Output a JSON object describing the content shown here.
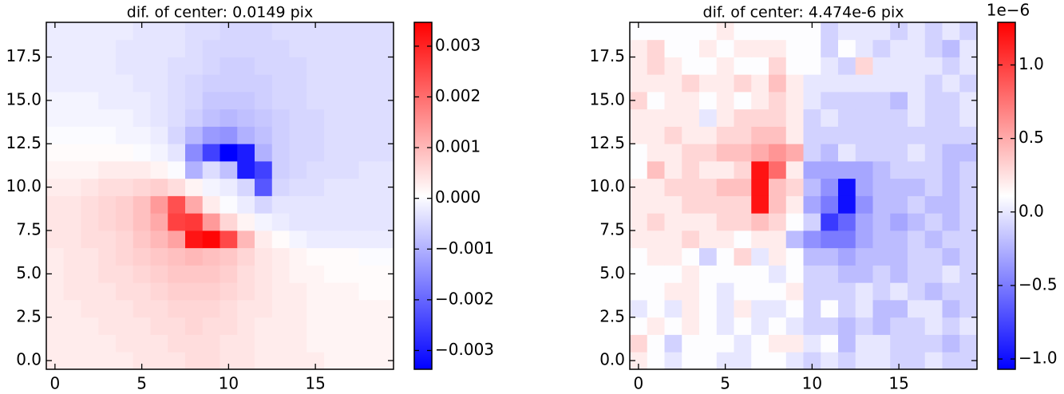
{
  "chart_data": [
    {
      "type": "heatmap",
      "title": "dif. of center: 0.0149 pix",
      "colormap": "bwr",
      "x": [
        0,
        1,
        2,
        3,
        4,
        5,
        6,
        7,
        8,
        9,
        10,
        11,
        12,
        13,
        14,
        15,
        16,
        17,
        18,
        19
      ],
      "y": [
        0,
        1,
        2,
        3,
        4,
        5,
        6,
        7,
        8,
        9,
        10,
        11,
        12,
        13,
        14,
        15,
        16,
        17,
        18,
        19
      ],
      "xlim": [
        -0.5,
        19.5
      ],
      "ylim": [
        -0.5,
        19.5
      ],
      "xticks": [
        0,
        5,
        10,
        15
      ],
      "yticks": [
        {
          "value": 0,
          "label": "0.0"
        },
        2.5,
        {
          "value": 5,
          "label": "5.0"
        },
        7.5,
        {
          "value": 10,
          "label": "10.0"
        },
        12.5,
        {
          "value": 15,
          "label": "15.0"
        },
        17.5
      ],
      "clim": [
        -0.00337,
        0.00347
      ],
      "cticks": [
        {
          "value": -0.003,
          "label": "−0.003"
        },
        {
          "value": -0.002,
          "label": "−0.002"
        },
        {
          "value": -0.001,
          "label": "−0.001"
        },
        {
          "value": 0,
          "label": "0.000"
        },
        0.001,
        0.002,
        0.003
      ],
      "values": [
        [
          0.0003,
          0.0003,
          0.0003,
          0.0003,
          0.0003,
          0.0004,
          0.0004,
          0.0004,
          0.0005,
          0.0005,
          0.0004,
          0.0004,
          0.0003,
          0.0003,
          0.0003,
          0.0003,
          0.0002,
          0.0002,
          0.0002,
          0.0002
        ],
        [
          0.0003,
          0.0003,
          0.0003,
          0.0003,
          0.0004,
          0.0004,
          0.0004,
          0.0005,
          0.0005,
          0.0005,
          0.0004,
          0.0004,
          0.0003,
          0.0003,
          0.0003,
          0.0002,
          0.0002,
          0.0002,
          0.0002,
          0.0002
        ],
        [
          0.0003,
          0.0003,
          0.0003,
          0.0004,
          0.0004,
          0.0004,
          0.0005,
          0.0005,
          0.0006,
          0.0005,
          0.0005,
          0.0004,
          0.0003,
          0.0003,
          0.0003,
          0.0002,
          0.0002,
          0.0002,
          0.0002,
          0.0002
        ],
        [
          0.0003,
          0.0003,
          0.0004,
          0.0004,
          0.0004,
          0.0005,
          0.0005,
          0.0006,
          0.0006,
          0.0006,
          0.0005,
          0.0004,
          0.0004,
          0.0003,
          0.0003,
          0.0002,
          0.0002,
          0.0002,
          0.0002,
          0.0002
        ],
        [
          0.0003,
          0.0004,
          0.0004,
          0.0004,
          0.0005,
          0.0005,
          0.0006,
          0.0007,
          0.0007,
          0.0007,
          0.0006,
          0.0005,
          0.0004,
          0.0003,
          0.0003,
          0.0002,
          0.0002,
          0.0002,
          0.0001,
          0.0001
        ],
        [
          0.0003,
          0.0004,
          0.0004,
          0.0005,
          0.0005,
          0.0006,
          0.0007,
          0.0008,
          0.0008,
          0.0008,
          0.0007,
          0.0005,
          0.0004,
          0.0003,
          0.0002,
          0.0002,
          0.0001,
          0.0001,
          0.0001,
          0.0001
        ],
        [
          0.0003,
          0.0004,
          0.0004,
          0.0005,
          0.0006,
          0.0007,
          0.0008,
          0.0009,
          0.001,
          0.0009,
          0.0008,
          0.0006,
          0.0004,
          0.0003,
          0.0002,
          0.0001,
          0.0001,
          0.0001,
          0,
          0
        ],
        [
          0.0004,
          0.0004,
          0.0005,
          0.0005,
          0.0006,
          0.0008,
          0.001,
          0.0013,
          0.0032,
          0.0034,
          0.0025,
          0.001,
          0.0003,
          0.0001,
          -0.0001,
          -0.0002,
          -0.0002,
          -0.0002,
          -0.0002,
          -0.0002
        ],
        [
          0.0004,
          0.0004,
          0.0005,
          0.0006,
          0.0007,
          0.0009,
          0.0012,
          0.0026,
          0.0027,
          0.0014,
          0.0006,
          0.0002,
          -0.0001,
          -0.0002,
          -0.0003,
          -0.0003,
          -0.0003,
          -0.0003,
          -0.0003,
          -0.0003
        ],
        [
          0.0004,
          0.0004,
          0.0005,
          0.0006,
          0.0007,
          0.0009,
          0.0014,
          0.0024,
          0.0012,
          0.0003,
          0,
          -0.0002,
          -0.0005,
          -0.0003,
          -0.0003,
          -0.0003,
          -0.0003,
          -0.0003,
          -0.0003,
          -0.0003
        ],
        [
          0.0003,
          0.0003,
          0.0004,
          0.0005,
          0.0005,
          0.0006,
          0.0007,
          0.0005,
          0.0002,
          -0.0001,
          -0.0002,
          -0.0005,
          -0.0022,
          -0.0005,
          -0.0004,
          -0.0004,
          -0.0003,
          -0.0003,
          -0.0003,
          -0.0003
        ],
        [
          0.0002,
          0.0002,
          0.0002,
          0.0003,
          0.0003,
          0.0003,
          0.0002,
          0,
          -0.001,
          -0.0004,
          -0.0008,
          -0.003,
          -0.0025,
          -0.0006,
          -0.0005,
          -0.0004,
          -0.0004,
          -0.0004,
          -0.0003,
          -0.0003
        ],
        [
          0.0001,
          0.0001,
          0.0001,
          0.0001,
          0.0001,
          0,
          -0.0001,
          -0.0003,
          -0.0015,
          -0.0025,
          -0.0034,
          -0.003,
          -0.001,
          -0.0006,
          -0.0005,
          -0.0005,
          -0.0004,
          -0.0004,
          -0.0004,
          -0.0004
        ],
        [
          0,
          0,
          0,
          0,
          -0.0001,
          -0.0001,
          -0.0002,
          -0.0005,
          -0.0009,
          -0.0013,
          -0.0014,
          -0.001,
          -0.0008,
          -0.0006,
          -0.0005,
          -0.0005,
          -0.0004,
          -0.0004,
          -0.0004,
          -0.0004
        ],
        [
          -0.0001,
          -0.0001,
          -0.0001,
          -0.0001,
          -0.0001,
          -0.0002,
          -0.0003,
          -0.0004,
          -0.0006,
          -0.0008,
          -0.0009,
          -0.0008,
          -0.0007,
          -0.0006,
          -0.0005,
          -0.0005,
          -0.0004,
          -0.0004,
          -0.0004,
          -0.0004
        ],
        [
          -0.0001,
          -0.0001,
          -0.0001,
          -0.0002,
          -0.0002,
          -0.0002,
          -0.0003,
          -0.0004,
          -0.0005,
          -0.0007,
          -0.0007,
          -0.0007,
          -0.0006,
          -0.0005,
          -0.0005,
          -0.0004,
          -0.0004,
          -0.0004,
          -0.0004,
          -0.0004
        ],
        [
          -0.0002,
          -0.0002,
          -0.0002,
          -0.0002,
          -0.0002,
          -0.0003,
          -0.0003,
          -0.0004,
          -0.0005,
          -0.0006,
          -0.0006,
          -0.0006,
          -0.0006,
          -0.0005,
          -0.0005,
          -0.0004,
          -0.0004,
          -0.0004,
          -0.0004,
          -0.0004
        ],
        [
          -0.0002,
          -0.0002,
          -0.0002,
          -0.0002,
          -0.0003,
          -0.0003,
          -0.0003,
          -0.0004,
          -0.0004,
          -0.0005,
          -0.0006,
          -0.0006,
          -0.0005,
          -0.0005,
          -0.0005,
          -0.0004,
          -0.0004,
          -0.0004,
          -0.0004,
          -0.0004
        ],
        [
          -0.0002,
          -0.0002,
          -0.0002,
          -0.0002,
          -0.0003,
          -0.0003,
          -0.0003,
          -0.0003,
          -0.0004,
          -0.0005,
          -0.0005,
          -0.0005,
          -0.0005,
          -0.0005,
          -0.0004,
          -0.0004,
          -0.0004,
          -0.0004,
          -0.0004,
          -0.0004
        ],
        [
          -0.0002,
          -0.0002,
          -0.0002,
          -0.0002,
          -0.0002,
          -0.0003,
          -0.0003,
          -0.0003,
          -0.0004,
          -0.0004,
          -0.0005,
          -0.0005,
          -0.0005,
          -0.0004,
          -0.0004,
          -0.0004,
          -0.0004,
          -0.0004,
          -0.0004,
          -0.0004
        ]
      ]
    },
    {
      "type": "heatmap",
      "title": "dif. of center: 4.474e-6 pix",
      "colormap": "bwr",
      "x": [
        0,
        1,
        2,
        3,
        4,
        5,
        6,
        7,
        8,
        9,
        10,
        11,
        12,
        13,
        14,
        15,
        16,
        17,
        18,
        19
      ],
      "y": [
        0,
        1,
        2,
        3,
        4,
        5,
        6,
        7,
        8,
        9,
        10,
        11,
        12,
        13,
        14,
        15,
        16,
        17,
        18,
        19
      ],
      "xlim": [
        -0.5,
        19.5
      ],
      "ylim": [
        -0.5,
        19.5
      ],
      "xticks": [
        0,
        5,
        10,
        15
      ],
      "yticks": [
        {
          "value": 0,
          "label": "0.0"
        },
        2.5,
        {
          "value": 5,
          "label": "5.0"
        },
        7.5,
        {
          "value": 10,
          "label": "10.0"
        },
        12.5,
        {
          "value": 15,
          "label": "15.0"
        },
        17.5
      ],
      "clim": [
        -1.07,
        1.29
      ],
      "coffset_label": "1e−6",
      "cticks": [
        {
          "value": -1,
          "label": "−1.0"
        },
        {
          "value": -0.5,
          "label": "−0.5"
        },
        {
          "value": 0,
          "label": "0.0"
        },
        0.5,
        {
          "value": 1,
          "label": "1.0"
        }
      ],
      "values": [
        [
          0.2,
          0.1,
          0,
          0.1,
          0.1,
          0,
          0,
          0.1,
          0.1,
          0,
          -0.1,
          0,
          -0.1,
          0,
          0,
          -0.1,
          -0.1,
          0,
          -0.1,
          -0.1
        ],
        [
          0.3,
          0.1,
          -0.1,
          0.1,
          0.1,
          0.1,
          0,
          0.1,
          0.2,
          0.2,
          0,
          0.1,
          -0.2,
          0,
          0,
          -0.1,
          -0.1,
          -0.1,
          -0.2,
          -0.1
        ],
        [
          0.1,
          0.2,
          0.1,
          0.2,
          0.1,
          0,
          0.1,
          0,
          0.1,
          0,
          -0.1,
          -0.1,
          -0.2,
          -0.1,
          -0.2,
          -0.1,
          -0.1,
          0,
          -0.1,
          0
        ],
        [
          0,
          0.1,
          0,
          0.2,
          0.1,
          0,
          0.2,
          0,
          0,
          0.1,
          -0.1,
          0.1,
          -0.1,
          0,
          -0.2,
          -0.2,
          0,
          0,
          -0.2,
          -0.1
        ],
        [
          0.1,
          0.1,
          0.2,
          0.2,
          0.1,
          0,
          0.1,
          0.1,
          0.1,
          0.2,
          -0.1,
          -0.1,
          -0.1,
          0,
          -0.1,
          0,
          -0.1,
          -0.2,
          -0.1,
          -0.1
        ],
        [
          0.1,
          0.1,
          0.1,
          0.2,
          0.1,
          0.1,
          0.1,
          0.1,
          0,
          0.1,
          -0.1,
          -0.1,
          -0.2,
          -0.2,
          -0.1,
          -0.2,
          -0.1,
          -0.1,
          0,
          -0.1
        ],
        [
          0.1,
          0.2,
          0.2,
          0.1,
          -0.1,
          0.1,
          0.3,
          0,
          0.2,
          0.1,
          -0.2,
          -0.2,
          -0.3,
          -0.2,
          -0.2,
          -0.2,
          -0.1,
          -0.1,
          -0.2,
          -0.1
        ],
        [
          0.2,
          0.2,
          0.2,
          0.3,
          0.2,
          0.2,
          0.1,
          0.2,
          0.2,
          -0.2,
          -0.4,
          -0.5,
          -0.5,
          -0.3,
          -0.2,
          -0.2,
          -0.1,
          -0.2,
          -0.1,
          -0.1
        ],
        [
          0.2,
          0.3,
          0.2,
          0.2,
          0.2,
          0.3,
          0.3,
          0.4,
          0.3,
          0.1,
          -0.1,
          -0.8,
          -0.6,
          -0.3,
          -0.2,
          -0.3,
          -0.2,
          -0.1,
          -0.2,
          -0.1
        ],
        [
          0.2,
          0.2,
          0.2,
          0.3,
          0.3,
          0.3,
          0.3,
          1.2,
          0.4,
          0.2,
          -0.3,
          -0.5,
          -1.0,
          -0.4,
          -0.2,
          -0.2,
          -0.1,
          -0.2,
          -0.2,
          -0.1
        ],
        [
          0.2,
          0.2,
          0.3,
          0.3,
          0.3,
          0.4,
          0.4,
          1.2,
          0.4,
          0.3,
          -0.2,
          -0.4,
          -1.0,
          -0.3,
          -0.2,
          -0.2,
          -0.2,
          -0.1,
          -0.2,
          -0.1
        ],
        [
          0.1,
          0.4,
          0.2,
          0.3,
          0.2,
          0.2,
          0.3,
          1.2,
          0.8,
          0.2,
          -0.3,
          -0.3,
          -0.3,
          -0.3,
          -0.2,
          -0.1,
          -0.1,
          -0.1,
          -0.2,
          -0.1
        ],
        [
          0.1,
          0.2,
          0.2,
          0.3,
          0.3,
          0.4,
          0.4,
          0.5,
          0.6,
          0.5,
          -0.1,
          -0.2,
          0,
          -0.1,
          -0.1,
          -0.1,
          0,
          -0.1,
          -0.2,
          -0.2
        ],
        [
          0.2,
          0.2,
          0.3,
          0.2,
          0.2,
          0.3,
          0.3,
          0.4,
          0.4,
          0.2,
          -0.1,
          -0.1,
          -0.1,
          -0.1,
          -0.1,
          -0.1,
          -0.1,
          -0.1,
          -0.1,
          -0.1
        ],
        [
          0.2,
          0.2,
          0.2,
          0.2,
          0,
          0.2,
          0.3,
          0.3,
          0.3,
          0.2,
          -0.1,
          0,
          -0.1,
          -0.1,
          -0.1,
          -0.1,
          0,
          -0.1,
          -0.1,
          0
        ],
        [
          0.3,
          0.1,
          0.2,
          0.2,
          0.1,
          0.2,
          0.1,
          0.2,
          0.3,
          0.2,
          0,
          -0.1,
          -0.1,
          -0.1,
          -0.1,
          -0.2,
          0,
          -0.1,
          -0.1,
          0
        ],
        [
          0.2,
          0.2,
          0.2,
          0.3,
          0.2,
          0.2,
          0.3,
          0.2,
          0.4,
          0.2,
          0,
          0,
          0,
          0,
          0,
          0,
          0,
          -0.1,
          0,
          -0.1
        ],
        [
          0.2,
          0.3,
          0.2,
          0.1,
          0.1,
          0.2,
          0.1,
          0.1,
          0.3,
          0.1,
          0.1,
          0,
          -0.1,
          0.3,
          0,
          0,
          0,
          0,
          -0.1,
          0
        ],
        [
          0.2,
          0.3,
          0.1,
          0.1,
          0.2,
          0.1,
          0.2,
          0.2,
          0.2,
          0.1,
          0.1,
          -0.1,
          0.1,
          0,
          -0.1,
          0,
          0,
          -0.1,
          -0.2,
          0
        ],
        [
          0.1,
          0.1,
          0.1,
          0.1,
          0.1,
          0.2,
          0.1,
          0.1,
          0.1,
          0.1,
          0.1,
          -0.1,
          0,
          0,
          0,
          -0.1,
          0,
          -0.1,
          0,
          -0.1
        ]
      ]
    }
  ]
}
